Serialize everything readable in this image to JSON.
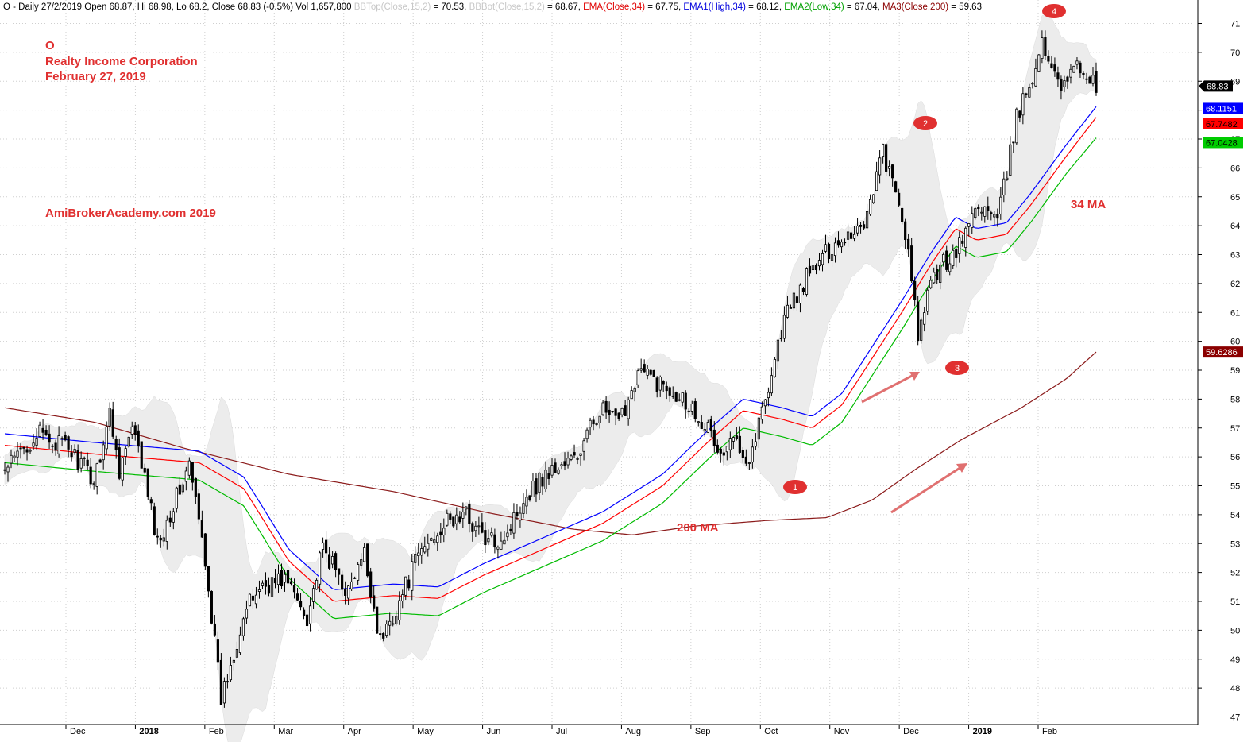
{
  "chart_data": {
    "type": "candlestick",
    "header": [
      {
        "text": "O - Daily 27/2/2019 Open 68.87, Hi 68.98, Lo 68.2, Close 68.83 (-0.5%) Vol 1,657,800 ",
        "color": "#000000"
      },
      {
        "text": "BBTop(Close,15,2)",
        "color": "#c8c8c8"
      },
      {
        "text": " = 70.53, ",
        "color": "#000000"
      },
      {
        "text": "BBBot(Close,15,2)",
        "color": "#c8c8c8"
      },
      {
        "text": " = 68.67, ",
        "color": "#000000"
      },
      {
        "text": "EMA(Close,34)",
        "color": "#e00000"
      },
      {
        "text": " = 67.75, ",
        "color": "#000000"
      },
      {
        "text": "EMA1(High,34)",
        "color": "#0000dd"
      },
      {
        "text": " = 68.12, ",
        "color": "#000000"
      },
      {
        "text": "EMA2(Low,34)",
        "color": "#00a000"
      },
      {
        "text": " = 67.04, ",
        "color": "#000000"
      },
      {
        "text": "MA3(Close,200)",
        "color": "#8b0000"
      },
      {
        "text": " = 59.63",
        "color": "#000000"
      }
    ],
    "title_lines": [
      "O",
      "Realty Income Corporation",
      "February 27, 2019"
    ],
    "watermark": "AmiBroker Academy.com   2019",
    "watermark_text": "AmiBrokerAcademy.com   2019",
    "ylim": [
      46.6,
      71.6
    ],
    "y_ticks": [
      47,
      48,
      49,
      50,
      51,
      52,
      53,
      54,
      55,
      56,
      57,
      58,
      59,
      60,
      61,
      62,
      63,
      64,
      65,
      66,
      67,
      68,
      69,
      70,
      71
    ],
    "grid": true,
    "x_labels": [
      {
        "label": "Dec",
        "bold": false
      },
      {
        "label": "2018",
        "bold": true
      },
      {
        "label": "Feb",
        "bold": false
      },
      {
        "label": "Mar",
        "bold": false
      },
      {
        "label": "Apr",
        "bold": false
      },
      {
        "label": "May",
        "bold": false
      },
      {
        "label": "Jun",
        "bold": false
      },
      {
        "label": "Jul",
        "bold": false
      },
      {
        "label": "Aug",
        "bold": false
      },
      {
        "label": "Sep",
        "bold": false
      },
      {
        "label": "Oct",
        "bold": false
      },
      {
        "label": "Nov",
        "bold": false
      },
      {
        "label": "Dec",
        "bold": false
      },
      {
        "label": "2019",
        "bold": true
      },
      {
        "label": "Feb",
        "bold": false
      }
    ],
    "ema_keypoints": [
      [
        0,
        56.4
      ],
      [
        30,
        56.1
      ],
      [
        65,
        55.8
      ],
      [
        80,
        54.9
      ],
      [
        95,
        52.4
      ],
      [
        110,
        51.0
      ],
      [
        130,
        51.2
      ],
      [
        145,
        51.1
      ],
      [
        160,
        51.9
      ],
      [
        180,
        52.8
      ],
      [
        200,
        53.7
      ],
      [
        220,
        55.0
      ],
      [
        235,
        56.5
      ],
      [
        247,
        57.6
      ],
      [
        260,
        57.3
      ],
      [
        270,
        57.0
      ],
      [
        280,
        57.8
      ],
      [
        300,
        61.0
      ],
      [
        310,
        62.7
      ],
      [
        318,
        63.9
      ],
      [
        325,
        63.5
      ],
      [
        335,
        63.7
      ],
      [
        343,
        64.7
      ],
      [
        355,
        66.4
      ],
      [
        365,
        67.75
      ]
    ],
    "ema_high_keypoints": [
      [
        0,
        56.8
      ],
      [
        30,
        56.5
      ],
      [
        65,
        56.2
      ],
      [
        80,
        55.3
      ],
      [
        95,
        52.8
      ],
      [
        110,
        51.4
      ],
      [
        130,
        51.6
      ],
      [
        145,
        51.5
      ],
      [
        160,
        52.3
      ],
      [
        180,
        53.2
      ],
      [
        200,
        54.1
      ],
      [
        220,
        55.4
      ],
      [
        235,
        56.9
      ],
      [
        247,
        58.0
      ],
      [
        260,
        57.7
      ],
      [
        270,
        57.4
      ],
      [
        280,
        58.2
      ],
      [
        300,
        61.4
      ],
      [
        310,
        63.1
      ],
      [
        318,
        64.3
      ],
      [
        325,
        63.9
      ],
      [
        335,
        64.1
      ],
      [
        343,
        65.1
      ],
      [
        355,
        66.8
      ],
      [
        365,
        68.12
      ]
    ],
    "ema_low_keypoints": [
      [
        0,
        55.8
      ],
      [
        30,
        55.5
      ],
      [
        65,
        55.2
      ],
      [
        80,
        54.3
      ],
      [
        95,
        51.8
      ],
      [
        110,
        50.4
      ],
      [
        130,
        50.6
      ],
      [
        145,
        50.5
      ],
      [
        160,
        51.3
      ],
      [
        180,
        52.2
      ],
      [
        200,
        53.1
      ],
      [
        220,
        54.4
      ],
      [
        235,
        55.9
      ],
      [
        247,
        57.0
      ],
      [
        260,
        56.7
      ],
      [
        270,
        56.4
      ],
      [
        280,
        57.2
      ],
      [
        300,
        60.4
      ],
      [
        310,
        62.1
      ],
      [
        318,
        63.3
      ],
      [
        325,
        62.9
      ],
      [
        335,
        63.1
      ],
      [
        343,
        64.1
      ],
      [
        355,
        65.8
      ],
      [
        365,
        67.04
      ]
    ],
    "ma200_keypoints": [
      [
        0,
        57.7
      ],
      [
        30,
        57.2
      ],
      [
        60,
        56.3
      ],
      [
        95,
        55.4
      ],
      [
        130,
        54.8
      ],
      [
        160,
        54.1
      ],
      [
        190,
        53.5
      ],
      [
        210,
        53.3
      ],
      [
        230,
        53.6
      ],
      [
        255,
        53.8
      ],
      [
        275,
        53.9
      ],
      [
        290,
        54.5
      ],
      [
        305,
        55.6
      ],
      [
        320,
        56.6
      ],
      [
        340,
        57.7
      ],
      [
        355,
        58.7
      ],
      [
        365,
        59.63
      ]
    ],
    "close_keypoints": [
      [
        0,
        55.5
      ],
      [
        10,
        56.8
      ],
      [
        20,
        56.3
      ],
      [
        28,
        55.2
      ],
      [
        33,
        57.5
      ],
      [
        36,
        55.6
      ],
      [
        40,
        56.9
      ],
      [
        43,
        55.8
      ],
      [
        48,
        53.0
      ],
      [
        58,
        55.7
      ],
      [
        63,
        52.5
      ],
      [
        68,
        47.6
      ],
      [
        75,
        50.5
      ],
      [
        80,
        51.5
      ],
      [
        88,
        51.8
      ],
      [
        95,
        50.5
      ],
      [
        100,
        52.8
      ],
      [
        108,
        51.3
      ],
      [
        113,
        52.6
      ],
      [
        118,
        49.6
      ],
      [
        124,
        51.0
      ],
      [
        130,
        52.6
      ],
      [
        137,
        53.6
      ],
      [
        145,
        54.0
      ],
      [
        152,
        53.0
      ],
      [
        158,
        53.4
      ],
      [
        163,
        54.6
      ],
      [
        170,
        55.4
      ],
      [
        180,
        56.0
      ],
      [
        187,
        57.7
      ],
      [
        193,
        57.1
      ],
      [
        199,
        59.0
      ],
      [
        205,
        58.6
      ],
      [
        212,
        58.2
      ],
      [
        220,
        57.2
      ],
      [
        225,
        56.0
      ],
      [
        230,
        56.7
      ],
      [
        234,
        55.9
      ],
      [
        238,
        57.6
      ],
      [
        245,
        60.8
      ],
      [
        252,
        62.2
      ],
      [
        260,
        63.3
      ],
      [
        270,
        64.1
      ],
      [
        276,
        66.6
      ],
      [
        283,
        63.8
      ],
      [
        287,
        60.2
      ],
      [
        292,
        62.3
      ],
      [
        300,
        63.3
      ],
      [
        306,
        64.8
      ],
      [
        312,
        64.1
      ],
      [
        318,
        67.7
      ],
      [
        326,
        70.2
      ],
      [
        332,
        69.0
      ],
      [
        338,
        69.5
      ],
      [
        343,
        68.83
      ]
    ],
    "bollinger_sample_count": 344,
    "last_value_labels": [
      {
        "value": "68.83",
        "bg": "#000000",
        "fg": "#ffffff"
      },
      {
        "value": "68.1151",
        "bg": "#0000ff",
        "fg": "#ffffff"
      },
      {
        "value": "67.7482",
        "bg": "#ff0000",
        "fg": "#000000"
      },
      {
        "value": "67.0428",
        "bg": "#00cc00",
        "fg": "#000000"
      },
      {
        "value": "59.6286",
        "bg": "#8b0000",
        "fg": "#ffffff"
      }
    ],
    "annotations": {
      "ma34_label": "34 MA",
      "ma200_label": "200 MA",
      "markers": [
        "1",
        "2",
        "3",
        "4"
      ]
    },
    "colors": {
      "candle": "#000000",
      "ema_close": "#ff0000",
      "ema_high": "#0000ff",
      "ema_low": "#00bb00",
      "ma200": "#8b1a1a",
      "band_fill": "#ececec",
      "annotation": "#e03030",
      "grid": "#cfcfcf"
    }
  }
}
